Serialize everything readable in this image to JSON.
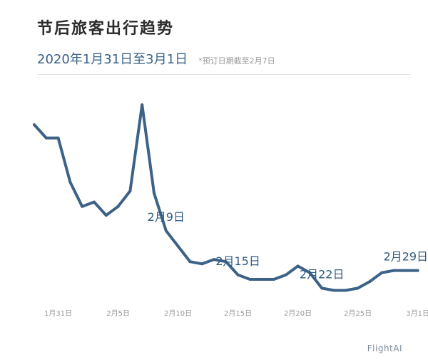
{
  "header": {
    "title": "节后旅客出行趋势",
    "subtitle": "2020年1月31日至3月1日",
    "note": "*预订日期截至2月7日"
  },
  "brand": "FlightAI",
  "colors": {
    "line": "#3d6287",
    "label": "#2f5a80",
    "tick": "#9a9a9a",
    "divider": "#e2e2e2"
  },
  "chart_data": {
    "type": "line",
    "x": [
      "1月29日",
      "1月30日",
      "1月31日",
      "2月1日",
      "2月2日",
      "2月3日",
      "2月4日",
      "2月5日",
      "2月6日",
      "2月7日",
      "2月8日",
      "2月9日",
      "2月10日",
      "2月11日",
      "2月12日",
      "2月13日",
      "2月14日",
      "2月15日",
      "2月16日",
      "2月17日",
      "2月18日",
      "2月19日",
      "2月20日",
      "2月21日",
      "2月22日",
      "2月23日",
      "2月24日",
      "2月25日",
      "2月26日",
      "2月27日",
      "2月28日",
      "2月29日",
      "3月1日"
    ],
    "values": [
      80,
      74,
      74,
      54,
      43,
      45,
      39,
      43,
      50,
      89,
      49,
      32,
      25,
      18,
      17,
      19,
      18,
      12,
      10,
      10,
      10,
      12,
      16,
      13,
      6,
      5,
      5,
      6,
      9,
      13,
      14,
      14,
      14
    ],
    "xticks": [
      {
        "at": "1月31日",
        "label": "1月31日"
      },
      {
        "at": "2月5日",
        "label": "2月5日"
      },
      {
        "at": "2月10日",
        "label": "2月10日"
      },
      {
        "at": "2月15日",
        "label": "2月15日"
      },
      {
        "at": "2月20日",
        "label": "2月20日"
      },
      {
        "at": "2月25日",
        "label": "2月25日"
      },
      {
        "at": "3月1日",
        "label": "3月1日"
      }
    ],
    "annotations": [
      {
        "at": "2月9日",
        "text": "2月9日"
      },
      {
        "at": "2月15日",
        "text": "2月15日"
      },
      {
        "at": "2月22日",
        "text": "2月22日"
      },
      {
        "at": "2月29日",
        "text": "2月29日"
      }
    ],
    "ylim": [
      0,
      100
    ],
    "grid": false,
    "legend": "none"
  }
}
